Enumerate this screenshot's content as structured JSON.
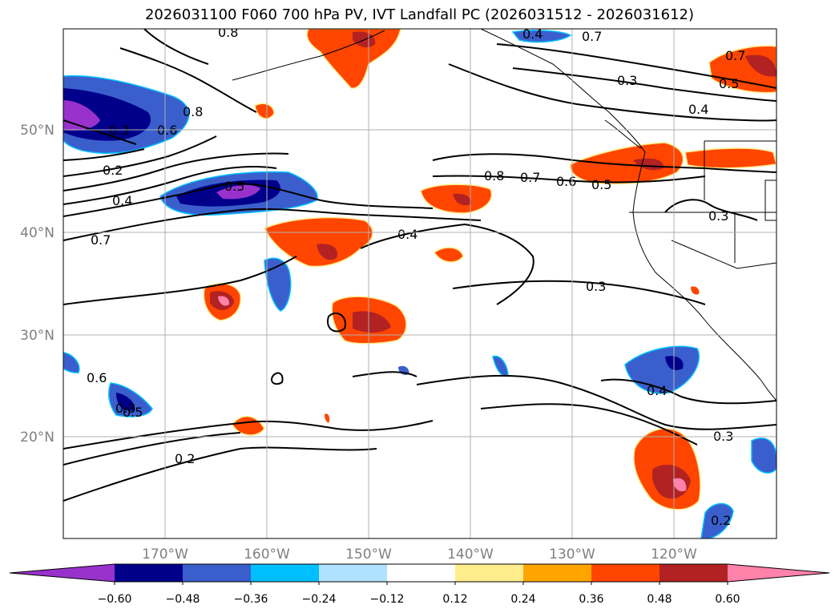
{
  "title": "2026031100 F060 700 hPa PV, IVT Landfall PC (2026031512 - 2026031612)",
  "lat_labels": [
    "50°N",
    "40°N",
    "30°N",
    "20°N"
  ],
  "lon_labels": [
    "170°W",
    "160°W",
    "150°W",
    "140°W",
    "130°W",
    "120°W"
  ],
  "contour_labels": [
    "0.8",
    "0.7",
    "0.8",
    "0.6",
    "0.3",
    "0.2",
    "0.4",
    "0.7",
    "0.5",
    "0.4",
    "0.8",
    "0.7",
    "0.6",
    "0.5",
    "0.3",
    "0.4",
    "0.7",
    "0.5",
    "0.3",
    "0.4",
    "0.3",
    "0.3",
    "0.4",
    "0.2",
    "0.5",
    "0.3",
    "0.2",
    "0.6"
  ],
  "colorbar": {
    "ticks": [
      "−0.60",
      "−0.48",
      "−0.36",
      "−0.24",
      "−0.12",
      "0.12",
      "0.24",
      "0.36",
      "0.48",
      "0.60"
    ],
    "colors": [
      "#9932cc",
      "#00008b",
      "#3a5fcd",
      "#00bfff",
      "#b0e2ff",
      "#ffffff",
      "#ffec8b",
      "#ffa500",
      "#ff4500",
      "#b22222",
      "#ff82ab"
    ]
  }
}
